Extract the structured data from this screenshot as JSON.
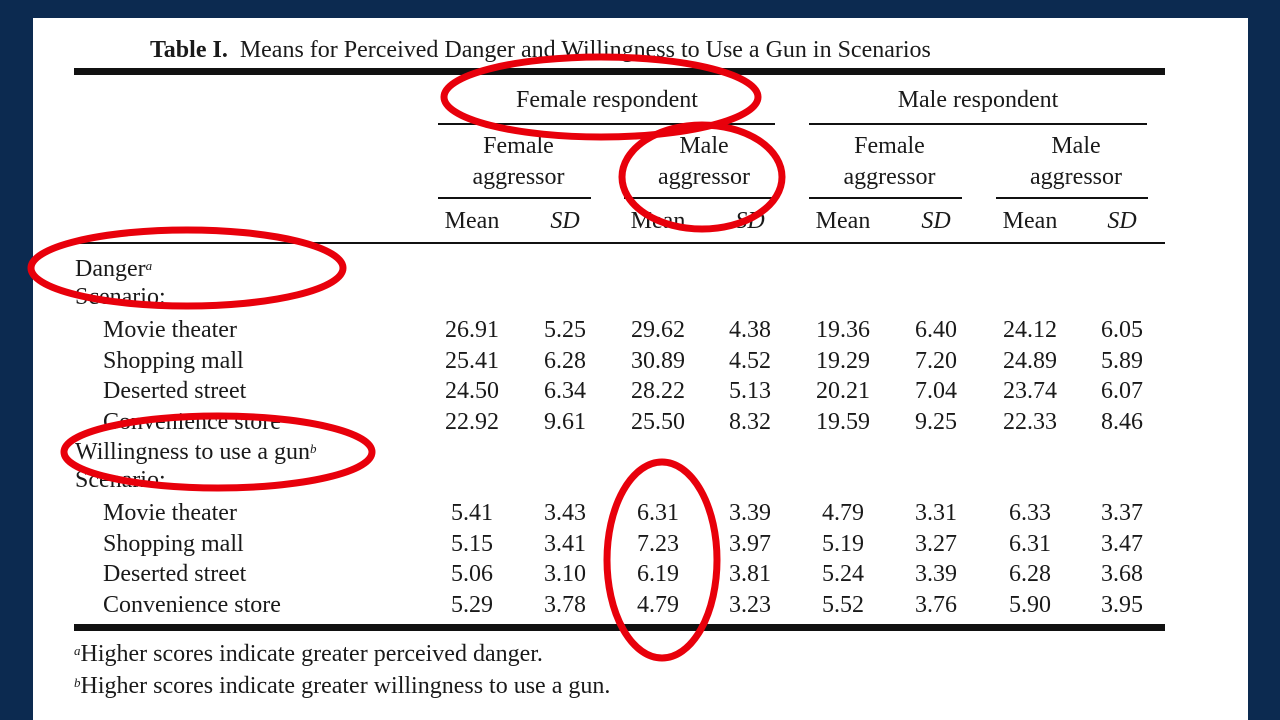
{
  "title": {
    "label": "Table I.",
    "text": "Means for Perceived Danger and Willingness to Use a Gun in Scenarios"
  },
  "headers": {
    "groups": [
      "Female respondent",
      "Male respondent"
    ],
    "subgroups": [
      {
        "line1": "Female",
        "line2": "aggressor"
      },
      {
        "line1": "Male",
        "line2": "aggressor"
      },
      {
        "line1": "Female",
        "line2": "aggressor"
      },
      {
        "line1": "Male",
        "line2": "aggressor"
      }
    ],
    "stats": [
      "Mean",
      "SD"
    ]
  },
  "sections": [
    {
      "heading": "Danger",
      "note_mark": "a",
      "sub": "Scenario:",
      "rows": [
        {
          "label": "Movie theater",
          "values": [
            "26.91",
            "5.25",
            "29.62",
            "4.38",
            "19.36",
            "6.40",
            "24.12",
            "6.05"
          ]
        },
        {
          "label": "Shopping mall",
          "values": [
            "25.41",
            "6.28",
            "30.89",
            "4.52",
            "19.29",
            "7.20",
            "24.89",
            "5.89"
          ]
        },
        {
          "label": "Deserted street",
          "values": [
            "24.50",
            "6.34",
            "28.22",
            "5.13",
            "20.21",
            "7.04",
            "23.74",
            "6.07"
          ]
        },
        {
          "label": "Convenience store",
          "values": [
            "22.92",
            "9.61",
            "25.50",
            "8.32",
            "19.59",
            "9.25",
            "22.33",
            "8.46"
          ]
        }
      ]
    },
    {
      "heading": "Willingness to use a gun",
      "note_mark": "b",
      "sub": "Scenario:",
      "rows": [
        {
          "label": "Movie theater",
          "values": [
            "5.41",
            "3.43",
            "6.31",
            "3.39",
            "4.79",
            "3.31",
            "6.33",
            "3.37"
          ]
        },
        {
          "label": "Shopping mall",
          "values": [
            "5.15",
            "3.41",
            "7.23",
            "3.97",
            "5.19",
            "3.27",
            "6.31",
            "3.47"
          ]
        },
        {
          "label": "Deserted street",
          "values": [
            "5.06",
            "3.10",
            "6.19",
            "3.81",
            "5.24",
            "3.39",
            "6.28",
            "3.68"
          ]
        },
        {
          "label": "Convenience store",
          "values": [
            "5.29",
            "3.78",
            "4.79",
            "3.23",
            "5.52",
            "3.76",
            "5.90",
            "3.95"
          ]
        }
      ]
    }
  ],
  "footnotes": [
    {
      "mark": "a",
      "text": "Higher scores indicate greater perceived danger."
    },
    {
      "mark": "b",
      "text": "Higher scores indicate greater willingness to use a gun."
    }
  ],
  "colors": {
    "background": "#0c2a50",
    "annotation": "#e8000b"
  }
}
